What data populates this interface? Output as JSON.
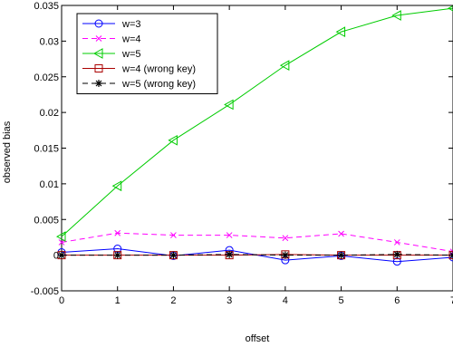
{
  "chart_data": {
    "type": "line",
    "xlabel": "offset",
    "ylabel": "observed bias",
    "xlim": [
      0,
      7
    ],
    "ylim": [
      -0.005,
      0.035
    ],
    "x_ticks": [
      0,
      1,
      2,
      3,
      4,
      5,
      6,
      7
    ],
    "x_tick_labels": [
      "0",
      "1",
      "2",
      "3",
      "4",
      "5",
      "6",
      "7"
    ],
    "y_ticks": [
      -0.005,
      0,
      0.005,
      0.01,
      0.015,
      0.02,
      0.025,
      0.03,
      0.035
    ],
    "y_tick_labels": [
      "-0.005",
      "0",
      "0.005",
      "0.01",
      "0.015",
      "0.02",
      "0.025",
      "0.03",
      "0.035"
    ],
    "grid": false,
    "legend_position": "top-left",
    "x": [
      0,
      1,
      2,
      3,
      4,
      5,
      6,
      7
    ],
    "series": [
      {
        "name": "w=3",
        "color": "#0000ff",
        "dash": "solid",
        "marker": "circle",
        "values": [
          0.0004,
          0.0009,
          -0.0001,
          0.0007,
          -0.0007,
          -0.0001,
          -0.0009,
          -0.0003
        ]
      },
      {
        "name": "w=4",
        "color": "#ff00ff",
        "dash": "dashed",
        "marker": "x",
        "values": [
          0.0018,
          0.0031,
          0.0028,
          0.0028,
          0.0024,
          0.003,
          0.0018,
          0.0005
        ]
      },
      {
        "name": "w=5",
        "color": "#00cc00",
        "dash": "solid",
        "marker": "triangle-left",
        "values": [
          0.0026,
          0.0097,
          0.0161,
          0.0211,
          0.0266,
          0.0313,
          0.0336,
          0.0346
        ]
      },
      {
        "name": "w=4 (wrong key)",
        "color": "#aa0000",
        "dash": "solid",
        "marker": "square",
        "values": [
          0.0,
          0.0,
          0.0,
          0.0,
          0.0001,
          0.0,
          0.0,
          0.0
        ]
      },
      {
        "name": "w=5 (wrong key)",
        "color": "#000000",
        "dash": "dashed",
        "marker": "asterisk",
        "values": [
          0.0,
          0.0,
          0.0,
          0.0001,
          0.0,
          0.0,
          0.0001,
          0.0
        ]
      }
    ]
  }
}
